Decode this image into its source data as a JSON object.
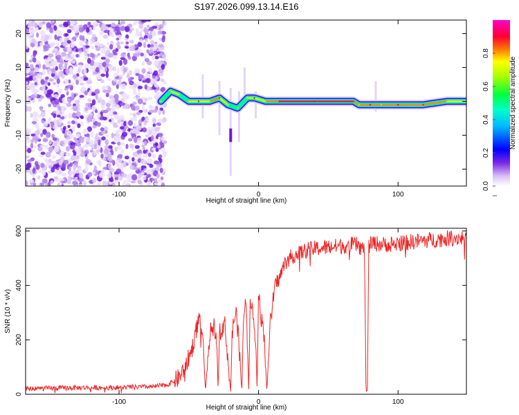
{
  "title": "S197.2026.099.13.14.E16",
  "chart_data": [
    {
      "type": "heatmap",
      "panel": "spectrogram",
      "xlabel": "Height of straight line (km)",
      "ylabel": "Frequency (Hz)",
      "xlim": [
        -167,
        149
      ],
      "ylim": [
        -25,
        24
      ],
      "xticks": [
        -100,
        0,
        100
      ],
      "yticks": [
        -20,
        -10,
        0,
        10,
        20
      ],
      "colorbar": {
        "label": "Normalized spectral amplitude",
        "range": [
          0,
          1
        ],
        "ticks": [
          0.0,
          0.2,
          0.4,
          0.6,
          0.8
        ],
        "colormap": [
          "#e8d8f8",
          "#7020e0",
          "#0000ff",
          "#00e0ff",
          "#00ff40",
          "#c8ff00",
          "#ff4000",
          "#ff0040",
          "#ff00c0"
        ]
      },
      "noise_region_x": [
        -167,
        -67
      ],
      "ridge": [
        {
          "x": -70,
          "f": 0,
          "a": 0.4
        },
        {
          "x": -63,
          "f": 3,
          "a": 0.7
        },
        {
          "x": -57,
          "f": 2,
          "a": 0.5
        },
        {
          "x": -50,
          "f": 0,
          "a": 0.5
        },
        {
          "x": -43,
          "f": 0,
          "a": 0.8
        },
        {
          "x": -35,
          "f": 0,
          "a": 0.6
        },
        {
          "x": -28,
          "f": 1,
          "a": 0.85
        },
        {
          "x": -22,
          "f": -1,
          "a": 0.5
        },
        {
          "x": -15,
          "f": -2,
          "a": 0.45
        },
        {
          "x": -8,
          "f": 1,
          "a": 0.55
        },
        {
          "x": -3,
          "f": 1,
          "a": 0.8
        },
        {
          "x": 5,
          "f": 0,
          "a": 0.6
        },
        {
          "x": 15,
          "f": 0,
          "a": 0.9
        },
        {
          "x": 40,
          "f": 0,
          "a": 1.0
        },
        {
          "x": 68,
          "f": 0,
          "a": 0.95
        },
        {
          "x": 72,
          "f": -1,
          "a": 0.6
        },
        {
          "x": 80,
          "f": -1,
          "a": 0.85
        },
        {
          "x": 88,
          "f": -1,
          "a": 0.7
        },
        {
          "x": 100,
          "f": -1,
          "a": 0.95
        },
        {
          "x": 118,
          "f": -1,
          "a": 0.8
        },
        {
          "x": 135,
          "f": 0,
          "a": 0.7
        },
        {
          "x": 149,
          "f": 0,
          "a": 0.7
        }
      ]
    },
    {
      "type": "line",
      "panel": "snr",
      "xlabel": "Height of straight line (km)",
      "ylabel": "SNR (10 * v/v)",
      "xlim": [
        -167,
        149
      ],
      "ylim": [
        0,
        610
      ],
      "xticks": [
        -100,
        0,
        100
      ],
      "yticks": [
        0,
        200,
        400,
        600
      ],
      "color": "#ee2222",
      "x": [
        -167,
        -150,
        -130,
        -110,
        -90,
        -75,
        -65,
        -57,
        -52,
        -48,
        -45,
        -42,
        -40,
        -38,
        -36,
        -34,
        -32,
        -30,
        -29,
        -28,
        -26,
        -24,
        -22,
        -20,
        -19,
        -18,
        -16,
        -14,
        -12,
        -11,
        -10,
        -9,
        -8,
        -7,
        -6,
        -4,
        -2,
        -1,
        0,
        1,
        2,
        4,
        6,
        8,
        9,
        10,
        12,
        14,
        16,
        18,
        20,
        25,
        30,
        35,
        40,
        50,
        60,
        70,
        76,
        77,
        78,
        79,
        80,
        82,
        90,
        100,
        110,
        120,
        130,
        140,
        149
      ],
      "y": [
        20,
        22,
        24,
        24,
        26,
        28,
        35,
        60,
        110,
        160,
        230,
        290,
        200,
        10,
        180,
        240,
        250,
        210,
        10,
        230,
        245,
        255,
        130,
        10,
        200,
        270,
        300,
        180,
        10,
        260,
        320,
        340,
        190,
        10,
        350,
        300,
        200,
        10,
        380,
        320,
        280,
        220,
        10,
        240,
        280,
        330,
        400,
        420,
        440,
        470,
        490,
        510,
        520,
        530,
        535,
        540,
        545,
        550,
        530,
        10,
        15,
        540,
        550,
        555,
        550,
        555,
        560,
        565,
        570,
        575,
        575
      ]
    }
  ]
}
